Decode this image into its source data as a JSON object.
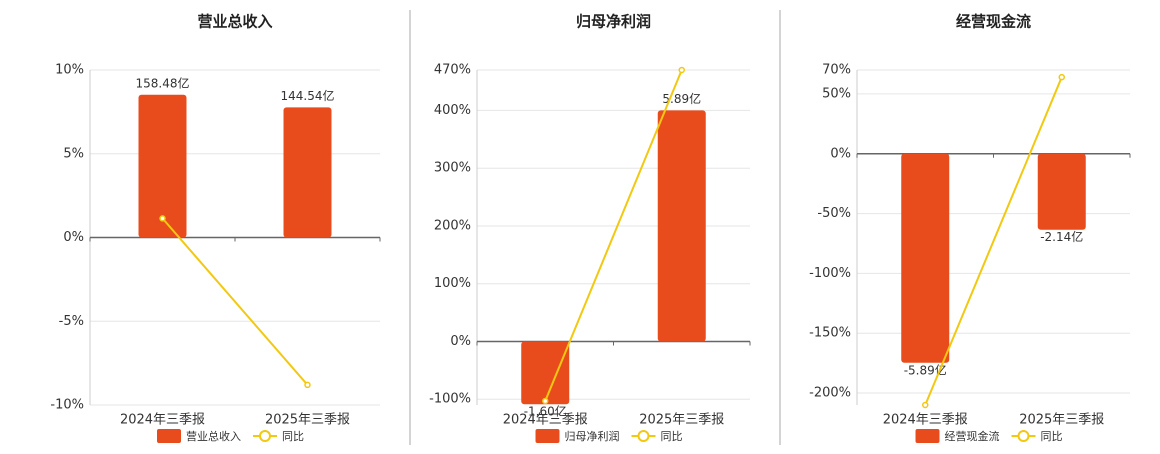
{
  "chart_data": [
    {
      "type": "bar",
      "title": "营业总收入",
      "categories": [
        "2024年三季报",
        "2025年三季报"
      ],
      "series": [
        {
          "name": "营业总收入",
          "color": "#e84c1c",
          "axis": "y2",
          "values": [
            158.48,
            144.54
          ],
          "value_labels": [
            "158.48亿",
            "144.54亿"
          ]
        },
        {
          "name": "同比",
          "color": "#f2c811",
          "type": "line",
          "values": [
            1.14,
            -8.8
          ]
        }
      ],
      "ylim": [
        -10,
        10
      ],
      "yticks": [
        {
          "value": -10,
          "label": "-10%"
        },
        {
          "value": -5,
          "label": "-5%"
        },
        {
          "value": 0,
          "label": "0%"
        },
        {
          "value": 5,
          "label": "5%"
        },
        {
          "value": 10,
          "label": "10%"
        }
      ],
      "y2lim": [
        -186,
        186
      ],
      "grid": true
    },
    {
      "type": "bar",
      "title": "归母净利润",
      "categories": [
        "2024年三季报",
        "2025年三季报"
      ],
      "series": [
        {
          "name": "归母净利润",
          "color": "#e84c1c",
          "axis": "y2",
          "values": [
            -1.6,
            5.89
          ],
          "value_labels": [
            "-1.60亿",
            "5.89亿"
          ]
        },
        {
          "name": "同比",
          "color": "#f2c811",
          "type": "line",
          "values": [
            -103,
            470
          ]
        }
      ],
      "ylim": [
        -110,
        470
      ],
      "yticks": [
        {
          "value": -100,
          "label": "-100%"
        },
        {
          "value": 0,
          "label": "0%"
        },
        {
          "value": 100,
          "label": "100%"
        },
        {
          "value": 200,
          "label": "200%"
        },
        {
          "value": 300,
          "label": "300%"
        },
        {
          "value": 400,
          "label": "400%"
        },
        {
          "value": 470,
          "label": "470%"
        }
      ],
      "y2lim": [
        -1.62,
        6.92
      ],
      "grid": true
    },
    {
      "type": "bar",
      "title": "经营现金流",
      "categories": [
        "2024年三季报",
        "2025年三季报"
      ],
      "series": [
        {
          "name": "经营现金流",
          "color": "#e84c1c",
          "axis": "y2",
          "values": [
            -5.89,
            -2.14
          ],
          "value_labels": [
            "-5.89亿",
            "-2.14亿"
          ]
        },
        {
          "name": "同比",
          "color": "#f2c811",
          "type": "line",
          "values": [
            -210,
            64
          ]
        }
      ],
      "ylim": [
        -210,
        70
      ],
      "yticks": [
        {
          "value": -200,
          "label": "-200%"
        },
        {
          "value": -150,
          "label": "-150%"
        },
        {
          "value": -100,
          "label": "-100%"
        },
        {
          "value": -50,
          "label": "-50%"
        },
        {
          "value": 0,
          "label": "0%"
        },
        {
          "value": 50,
          "label": "50%"
        },
        {
          "value": 70,
          "label": "70%"
        }
      ],
      "y2lim": [
        -7.08,
        2.36
      ],
      "grid": true
    }
  ]
}
